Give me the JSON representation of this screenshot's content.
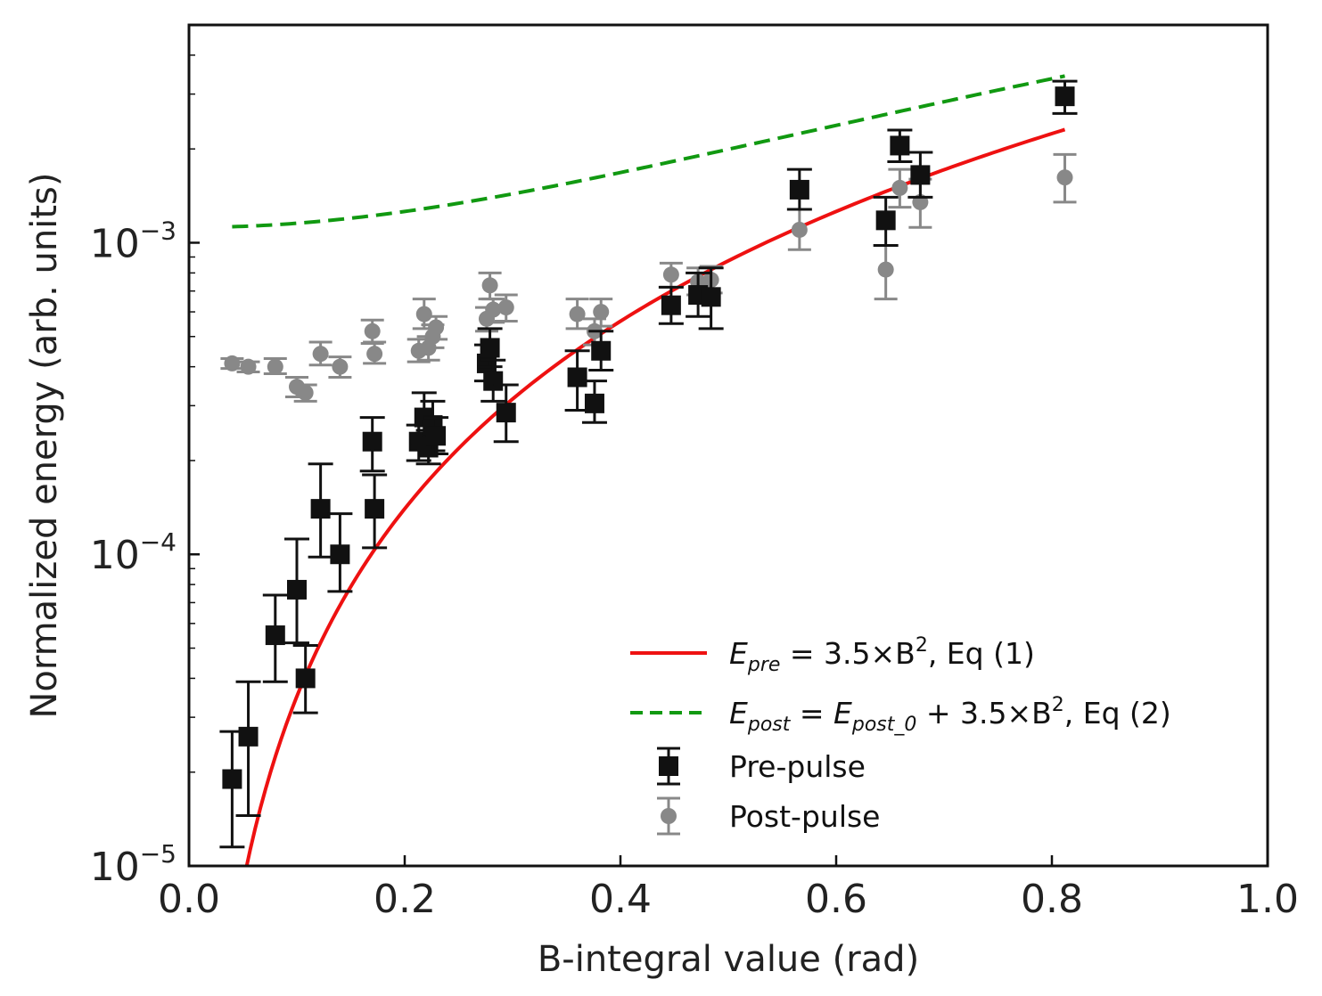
{
  "chart_data": {
    "type": "scatter",
    "title": "",
    "xlabel": "B-integral value (rad)",
    "ylabel": "Normalized energy  (arb. units)",
    "xlim": [
      0.0,
      1.0
    ],
    "ylim": [
      1e-05,
      0.005
    ],
    "yscale": "log",
    "grid": false,
    "legend_position": "lower-right",
    "x_ticks": [
      {
        "value": 0.0,
        "label": "0.0"
      },
      {
        "value": 0.2,
        "label": "0.2"
      },
      {
        "value": 0.4,
        "label": "0.4"
      },
      {
        "value": 0.6,
        "label": "0.6"
      },
      {
        "value": 0.8,
        "label": "0.8"
      },
      {
        "value": 1.0,
        "label": "1.0"
      }
    ],
    "y_ticks": [
      {
        "value": 1e-05,
        "base": "10",
        "exp": "−5"
      },
      {
        "value": 0.0001,
        "base": "10",
        "exp": "−4"
      },
      {
        "value": 0.001,
        "base": "10",
        "exp": "−3"
      }
    ],
    "colors": {
      "fit_pre": "#ee1111",
      "fit_post": "#119911",
      "pre_pulse": "#111111",
      "post_pulse": "#888888"
    },
    "fits": [
      {
        "name": "fit-pre",
        "formula": "3.5*B^2",
        "offset": 0,
        "coef": 0.0035,
        "x_range": [
          0.052,
          0.812
        ],
        "style": "solid",
        "color": "#ee1111"
      },
      {
        "name": "fit-post",
        "formula": "E_post_0 + 3.5*B^2",
        "offset": 0.00112,
        "coef": 0.0035,
        "x_range": [
          0.04,
          0.812
        ],
        "style": "dashed",
        "color": "#119911"
      }
    ],
    "legend": [
      {
        "kind": "line",
        "color": "#ee1111",
        "dashed": false,
        "label": {
          "E": "E",
          "sub": "pre",
          "rest": " = 3.5×B",
          "sup": "2",
          "tail": ", Eq (1)"
        }
      },
      {
        "kind": "line",
        "color": "#119911",
        "dashed": true,
        "label": {
          "E": "E",
          "sub": "post",
          "mid": " = E",
          "sub2": "post_0",
          "rest": " + 3.5×B",
          "sup": "2",
          "tail": ", Eq (2)"
        }
      },
      {
        "kind": "square",
        "color": "#111111",
        "text": "Pre-pulse"
      },
      {
        "kind": "circle",
        "color": "#888888",
        "text": "Post-pulse"
      }
    ],
    "series": [
      {
        "name": "Pre-pulse",
        "marker": "square",
        "color": "#111111",
        "points": [
          {
            "x": 0.04,
            "y": 1.9e-05,
            "lo": 1.15e-05,
            "hi": 2.7e-05
          },
          {
            "x": 0.055,
            "y": 2.6e-05,
            "lo": 1.45e-05,
            "hi": 3.9e-05
          },
          {
            "x": 0.08,
            "y": 5.5e-05,
            "lo": 3.9e-05,
            "hi": 7.4e-05
          },
          {
            "x": 0.1,
            "y": 7.7e-05,
            "lo": 5.2e-05,
            "hi": 0.000112
          },
          {
            "x": 0.108,
            "y": 4e-05,
            "lo": 3.1e-05,
            "hi": 5.1e-05
          },
          {
            "x": 0.122,
            "y": 0.00014,
            "lo": 9.8e-05,
            "hi": 0.000195
          },
          {
            "x": 0.14,
            "y": 0.0001,
            "lo": 7.6e-05,
            "hi": 0.000135
          },
          {
            "x": 0.17,
            "y": 0.00023,
            "lo": 0.000185,
            "hi": 0.000275
          },
          {
            "x": 0.172,
            "y": 0.00014,
            "lo": 0.000105,
            "hi": 0.00018
          },
          {
            "x": 0.213,
            "y": 0.00023,
            "lo": 0.0002,
            "hi": 0.00026
          },
          {
            "x": 0.218,
            "y": 0.000275,
            "lo": 0.000225,
            "hi": 0.00033
          },
          {
            "x": 0.222,
            "y": 0.00022,
            "lo": 0.000195,
            "hi": 0.00025
          },
          {
            "x": 0.226,
            "y": 0.00026,
            "lo": 0.000215,
            "hi": 0.00031
          },
          {
            "x": 0.229,
            "y": 0.00024,
            "lo": 0.00021,
            "hi": 0.000275
          },
          {
            "x": 0.276,
            "y": 0.00041,
            "lo": 0.00036,
            "hi": 0.00047
          },
          {
            "x": 0.279,
            "y": 0.00046,
            "lo": 0.0004,
            "hi": 0.00053
          },
          {
            "x": 0.282,
            "y": 0.00036,
            "lo": 0.00031,
            "hi": 0.00042
          },
          {
            "x": 0.294,
            "y": 0.000285,
            "lo": 0.00023,
            "hi": 0.00035
          },
          {
            "x": 0.36,
            "y": 0.00037,
            "lo": 0.00029,
            "hi": 0.00045
          },
          {
            "x": 0.376,
            "y": 0.000305,
            "lo": 0.000265,
            "hi": 0.00036
          },
          {
            "x": 0.382,
            "y": 0.00045,
            "lo": 0.00039,
            "hi": 0.00052
          },
          {
            "x": 0.447,
            "y": 0.00063,
            "lo": 0.00055,
            "hi": 0.00072
          },
          {
            "x": 0.472,
            "y": 0.00068,
            "lo": 0.00058,
            "hi": 0.0008
          },
          {
            "x": 0.484,
            "y": 0.00067,
            "lo": 0.00053,
            "hi": 0.00083
          },
          {
            "x": 0.566,
            "y": 0.00148,
            "lo": 0.00128,
            "hi": 0.00172
          },
          {
            "x": 0.646,
            "y": 0.00118,
            "lo": 0.00098,
            "hi": 0.0014
          },
          {
            "x": 0.659,
            "y": 0.00205,
            "lo": 0.00182,
            "hi": 0.0023
          },
          {
            "x": 0.678,
            "y": 0.00165,
            "lo": 0.0014,
            "hi": 0.00195
          },
          {
            "x": 0.812,
            "y": 0.00295,
            "lo": 0.0026,
            "hi": 0.0033
          }
        ]
      },
      {
        "name": "Post-pulse",
        "marker": "circle",
        "color": "#888888",
        "points": [
          {
            "x": 0.04,
            "y": 0.00041,
            "lo": 0.000395,
            "hi": 0.000425
          },
          {
            "x": 0.055,
            "y": 0.0004,
            "lo": 0.000385,
            "hi": 0.000415
          },
          {
            "x": 0.08,
            "y": 0.0004,
            "lo": 0.00038,
            "hi": 0.000425
          },
          {
            "x": 0.1,
            "y": 0.000345,
            "lo": 0.00032,
            "hi": 0.00037
          },
          {
            "x": 0.108,
            "y": 0.00033,
            "lo": 0.00031,
            "hi": 0.00035
          },
          {
            "x": 0.122,
            "y": 0.00044,
            "lo": 0.000405,
            "hi": 0.00048
          },
          {
            "x": 0.14,
            "y": 0.0004,
            "lo": 0.00037,
            "hi": 0.00043
          },
          {
            "x": 0.17,
            "y": 0.00052,
            "lo": 0.000475,
            "hi": 0.000565
          },
          {
            "x": 0.172,
            "y": 0.00044,
            "lo": 0.00041,
            "hi": 0.00048
          },
          {
            "x": 0.213,
            "y": 0.00045,
            "lo": 0.000415,
            "hi": 0.00049
          },
          {
            "x": 0.218,
            "y": 0.00059,
            "lo": 0.00053,
            "hi": 0.00066
          },
          {
            "x": 0.222,
            "y": 0.00046,
            "lo": 0.00042,
            "hi": 0.0005
          },
          {
            "x": 0.226,
            "y": 0.0005,
            "lo": 0.00046,
            "hi": 0.000545
          },
          {
            "x": 0.229,
            "y": 0.000535,
            "lo": 0.00049,
            "hi": 0.00058
          },
          {
            "x": 0.276,
            "y": 0.00057,
            "lo": 0.00052,
            "hi": 0.00062
          },
          {
            "x": 0.279,
            "y": 0.00073,
            "lo": 0.00066,
            "hi": 0.0008
          },
          {
            "x": 0.282,
            "y": 0.00061,
            "lo": 0.000555,
            "hi": 0.00066
          },
          {
            "x": 0.294,
            "y": 0.00062,
            "lo": 0.00056,
            "hi": 0.00068
          },
          {
            "x": 0.36,
            "y": 0.00059,
            "lo": 0.00053,
            "hi": 0.00066
          },
          {
            "x": 0.376,
            "y": 0.00052,
            "lo": 0.00047,
            "hi": 0.00057
          },
          {
            "x": 0.382,
            "y": 0.0006,
            "lo": 0.00054,
            "hi": 0.00066
          },
          {
            "x": 0.447,
            "y": 0.00079,
            "lo": 0.00072,
            "hi": 0.00086
          },
          {
            "x": 0.472,
            "y": 0.00075,
            "lo": 0.00068,
            "hi": 0.00083
          },
          {
            "x": 0.484,
            "y": 0.00076,
            "lo": 0.00069,
            "hi": 0.00084
          },
          {
            "x": 0.566,
            "y": 0.0011,
            "lo": 0.00095,
            "hi": 0.00128
          },
          {
            "x": 0.646,
            "y": 0.00082,
            "lo": 0.00066,
            "hi": 0.00098
          },
          {
            "x": 0.659,
            "y": 0.0015,
            "lo": 0.0013,
            "hi": 0.00172
          },
          {
            "x": 0.678,
            "y": 0.00135,
            "lo": 0.00112,
            "hi": 0.0016
          },
          {
            "x": 0.812,
            "y": 0.00162,
            "lo": 0.00135,
            "hi": 0.00192
          }
        ]
      }
    ]
  }
}
